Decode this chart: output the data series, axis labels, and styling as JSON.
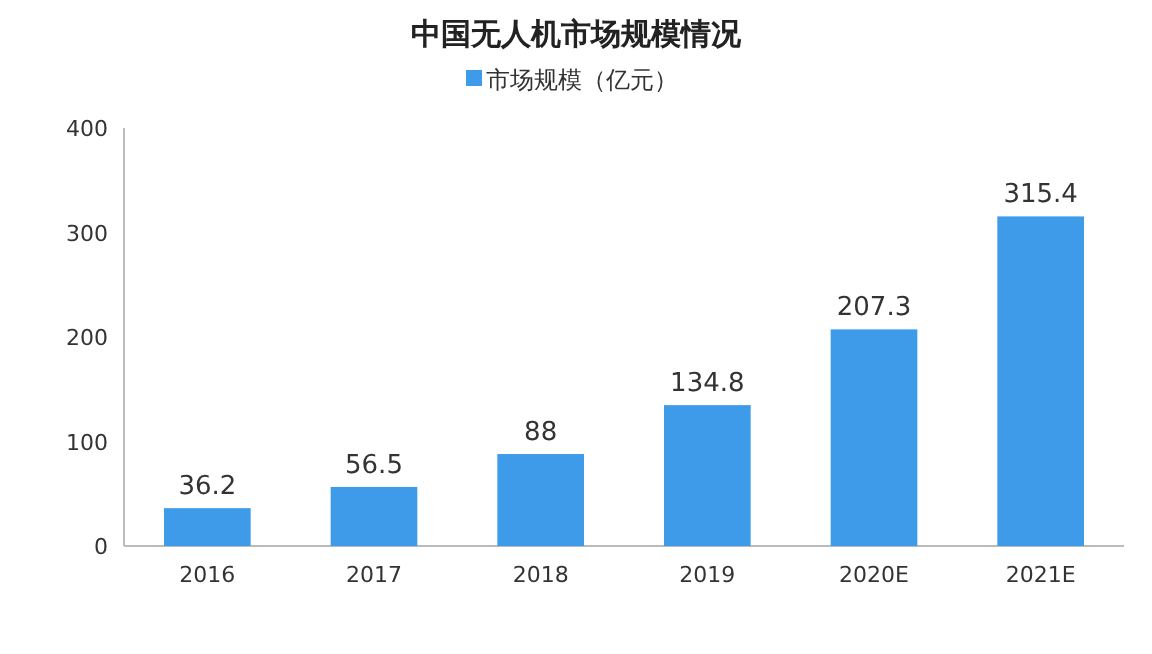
{
  "chart_data": {
    "type": "bar",
    "title": "中国无人机市场规模情况",
    "categories": [
      "2016",
      "2017",
      "2018",
      "2019",
      "2020E",
      "2021E"
    ],
    "series": [
      {
        "name": "市场规模（亿元）",
        "color": "#3d9be9",
        "values": [
          36.2,
          56.5,
          88,
          134.8,
          207.3,
          315.4
        ]
      }
    ],
    "ylim": [
      0,
      400
    ],
    "yticks": [
      0,
      100,
      200,
      300,
      400
    ],
    "data_labels": true,
    "legend": "top",
    "grid": false
  }
}
